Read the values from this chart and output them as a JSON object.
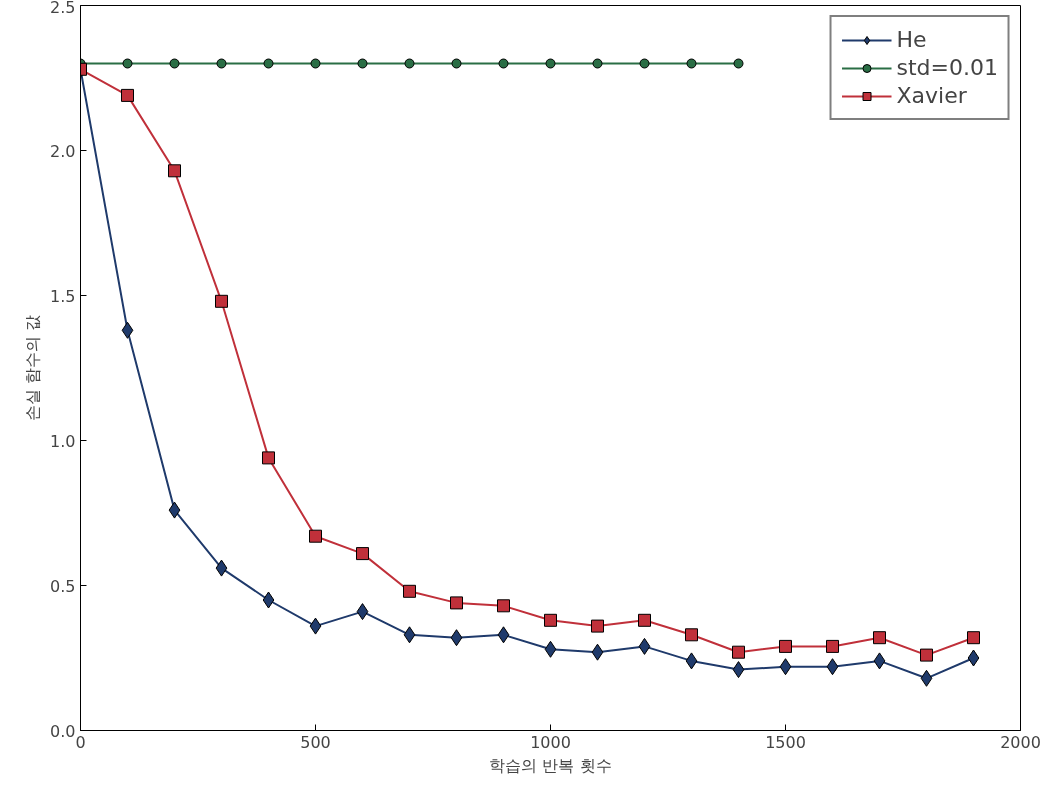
{
  "chart_data": {
    "type": "line",
    "xlabel": "학습의 반복 횟수",
    "ylabel": "손실 함수의 값",
    "x": [
      0,
      100,
      200,
      300,
      400,
      500,
      600,
      700,
      800,
      900,
      1000,
      1100,
      1200,
      1300,
      1400,
      1500,
      1600,
      1700,
      1800,
      1900
    ],
    "xlim": [
      0,
      2000
    ],
    "xticks": [
      0,
      500,
      1000,
      1500,
      2000
    ],
    "ylim": [
      0,
      2.5
    ],
    "yticks": [
      {
        "value": 0,
        "label": "0.0"
      },
      {
        "value": 0.5,
        "label": "0.5"
      },
      {
        "value": 1,
        "label": "1.0"
      },
      {
        "value": 1.5,
        "label": "1.5"
      },
      {
        "value": 2,
        "label": "2.0"
      },
      {
        "value": 2.5,
        "label": "2.5"
      }
    ],
    "grid": false,
    "legend": "top right",
    "line_style": "solid",
    "series": [
      {
        "name": "He",
        "color": "#1f3a6b",
        "marker": "diamond",
        "values": [
          2.28,
          1.38,
          0.76,
          0.56,
          0.45,
          0.36,
          0.41,
          0.33,
          0.32,
          0.33,
          0.28,
          0.27,
          0.29,
          0.24,
          0.21,
          0.22,
          0.22,
          0.24,
          0.18,
          0.25
        ]
      },
      {
        "name": "std=0.01",
        "color": "#2a6e45",
        "marker": "circle",
        "values": [
          2.3,
          2.3,
          2.3,
          2.3,
          2.3,
          2.3,
          2.3,
          2.3,
          2.3,
          2.3,
          2.3,
          2.3,
          2.3,
          2.3,
          2.3,
          null,
          null,
          null,
          null,
          null
        ]
      },
      {
        "name": "Xavier",
        "color": "#c0303a",
        "marker": "square",
        "values": [
          2.28,
          2.19,
          1.93,
          1.48,
          0.94,
          0.67,
          0.61,
          0.48,
          0.44,
          0.43,
          0.38,
          0.36,
          0.38,
          0.33,
          0.27,
          0.29,
          0.29,
          0.32,
          0.26,
          0.32
        ]
      }
    ]
  }
}
